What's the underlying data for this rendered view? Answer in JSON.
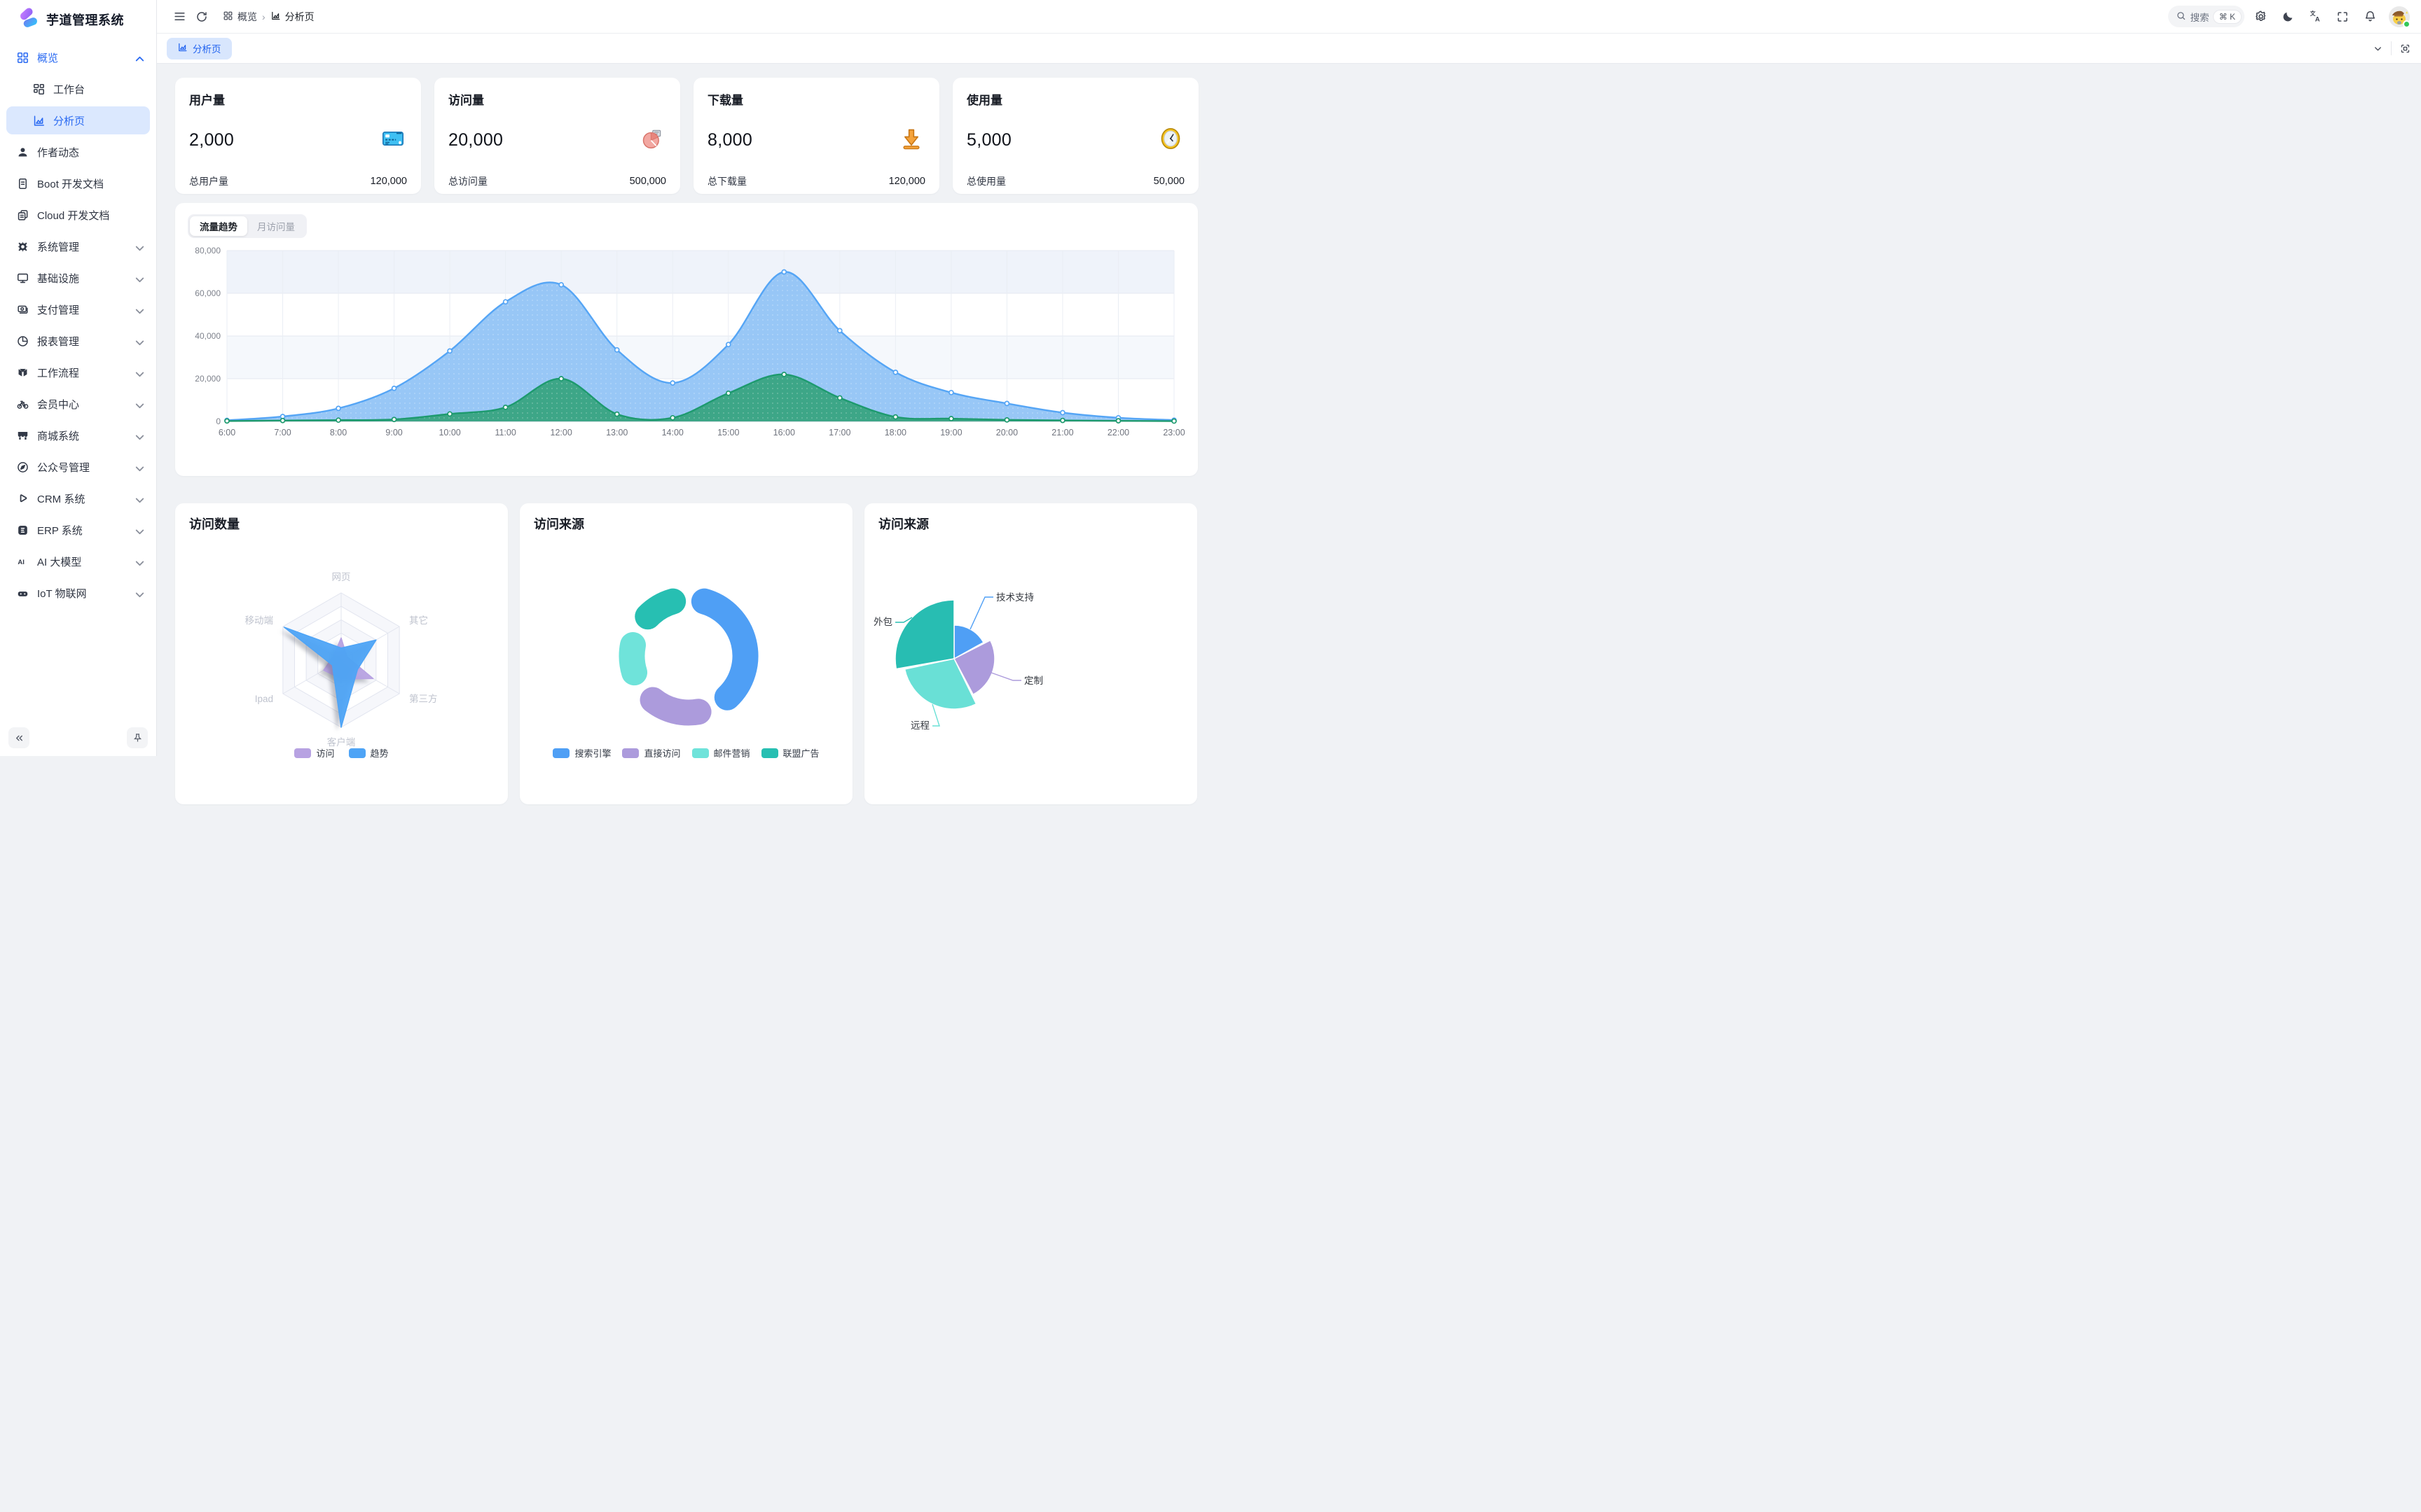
{
  "app": {
    "title": "芋道管理系统"
  },
  "topbar": {
    "search": {
      "placeholder": "搜索",
      "shortcut": "⌘ K"
    },
    "breadcrumb": [
      {
        "label": "概览",
        "icon": "grid-icon"
      },
      {
        "label": "分析页",
        "icon": "chart-icon"
      }
    ]
  },
  "tabbar": {
    "active_tab": "分析页"
  },
  "sidebar": {
    "items": [
      {
        "label": "概览",
        "icon": "grid",
        "chevron": "up",
        "group_active": true
      },
      {
        "label": "工作台",
        "icon": "layout",
        "indent": true
      },
      {
        "label": "分析页",
        "icon": "chart",
        "indent": true,
        "selected": true
      },
      {
        "label": "作者动态",
        "icon": "person"
      },
      {
        "label": "Boot 开发文档",
        "icon": "doc"
      },
      {
        "label": "Cloud 开发文档",
        "icon": "docs"
      },
      {
        "label": "系统管理",
        "icon": "gear",
        "chevron": "down"
      },
      {
        "label": "基础设施",
        "icon": "monitor",
        "chevron": "down"
      },
      {
        "label": "支付管理",
        "icon": "pay",
        "chevron": "down"
      },
      {
        "label": "报表管理",
        "icon": "pie",
        "chevron": "down"
      },
      {
        "label": "工作流程",
        "icon": "flow",
        "chevron": "down"
      },
      {
        "label": "会员中心",
        "icon": "bike",
        "chevron": "down"
      },
      {
        "label": "商城系统",
        "icon": "shop",
        "chevron": "down"
      },
      {
        "label": "公众号管理",
        "icon": "compass",
        "chevron": "down"
      },
      {
        "label": "CRM 系统",
        "icon": "play",
        "chevron": "down"
      },
      {
        "label": "ERP 系统",
        "icon": "erp",
        "chevron": "down"
      },
      {
        "label": "AI 大模型",
        "icon": "ai",
        "chevron": "down"
      },
      {
        "label": "IoT 物联网",
        "icon": "iot",
        "chevron": "down"
      }
    ]
  },
  "stats": {
    "cards": [
      {
        "title": "用户量",
        "value": "2,000",
        "icon": "bankcard",
        "footer_label": "总用户量",
        "footer_value": "120,000"
      },
      {
        "title": "访问量",
        "value": "20,000",
        "icon": "piechart",
        "footer_label": "总访问量",
        "footer_value": "500,000"
      },
      {
        "title": "下载量",
        "value": "8,000",
        "icon": "download",
        "footer_label": "总下载量",
        "footer_value": "120,000"
      },
      {
        "title": "使用量",
        "value": "5,000",
        "icon": "clock",
        "footer_label": "总使用量",
        "footer_value": "50,000"
      }
    ]
  },
  "traffic": {
    "tabs": [
      "流量趋势",
      "月访问量"
    ],
    "active_tab": "流量趋势"
  },
  "chart_data": [
    {
      "id": "traffic-trend",
      "type": "area",
      "title": "流量趋势",
      "x": [
        "6:00",
        "7:00",
        "8:00",
        "9:00",
        "10:00",
        "11:00",
        "12:00",
        "13:00",
        "14:00",
        "15:00",
        "16:00",
        "17:00",
        "18:00",
        "19:00",
        "20:00",
        "21:00",
        "22:00",
        "23:00"
      ],
      "ylim": [
        0,
        80000
      ],
      "y_ticks": [
        "0",
        "20,000",
        "40,000",
        "60,000",
        "80,000"
      ],
      "grid": true,
      "legend_position": "none",
      "series": [
        {
          "name": "series-blue",
          "color": "#55A5F5",
          "fill": "#8FC2F5",
          "values": [
            500,
            2300,
            6100,
            15500,
            33000,
            56000,
            64000,
            33500,
            18000,
            36000,
            70000,
            42500,
            23000,
            13500,
            8400,
            4100,
            1700,
            600
          ]
        },
        {
          "name": "series-green",
          "color": "#1D9A6E",
          "fill": "#35A37D",
          "values": [
            200,
            400,
            600,
            900,
            3500,
            6600,
            20000,
            3400,
            1700,
            13200,
            22000,
            11000,
            2100,
            1300,
            700,
            450,
            280,
            150
          ]
        }
      ]
    },
    {
      "id": "visit-count-radar",
      "type": "radar",
      "title": "访问数量",
      "indicators": [
        "网页",
        "其它",
        "第三方",
        "客户端",
        "Ipad",
        "移动端"
      ],
      "max": 100,
      "legend_position": "bottom",
      "series": [
        {
          "name": "访问",
          "color": "#B7A2E2",
          "values": [
            33,
            10,
            55,
            28,
            30,
            13
          ]
        },
        {
          "name": "趋势",
          "color": "#4EA4F6",
          "values": [
            18,
            60,
            28,
            100,
            15,
            98
          ]
        }
      ],
      "legend": [
        "访问",
        "趋势"
      ]
    },
    {
      "id": "visit-source-donut",
      "type": "pie",
      "title": "访问来源",
      "legend_position": "bottom",
      "slices": [
        {
          "name": "搜索引擎",
          "color": "#4F9FF5",
          "share_pct": 41,
          "start_deg": 3,
          "end_deg": 150
        },
        {
          "name": "直接访问",
          "color": "#AC9BDC",
          "share_pct": 21,
          "start_deg": 157,
          "end_deg": 232
        },
        {
          "name": "邮件营销",
          "color": "#6FE3DA",
          "share_pct": 15,
          "start_deg": 240,
          "end_deg": 294
        },
        {
          "name": "联盟广告",
          "color": "#27BFB2",
          "share_pct": 16,
          "start_deg": 301,
          "end_deg": 357
        }
      ],
      "legend": [
        "搜索引擎",
        "直接访问",
        "邮件营销",
        "联盟广告"
      ]
    },
    {
      "id": "visit-source-rose",
      "type": "pie",
      "title": "访问来源",
      "legend_position": "none",
      "slices": [
        {
          "name": "技术支持",
          "color": "#4F9FF5",
          "share_pct": 17,
          "start_deg": 0,
          "end_deg": 61,
          "radius": 48
        },
        {
          "name": "定制",
          "color": "#AC9BDC",
          "share_pct": 25,
          "start_deg": 63,
          "end_deg": 152,
          "radius": 58
        },
        {
          "name": "远程",
          "color": "#69E0D6",
          "share_pct": 29,
          "start_deg": 154,
          "end_deg": 258,
          "radius": 72
        },
        {
          "name": "外包",
          "color": "#28BDB2",
          "share_pct": 29,
          "start_deg": 260,
          "end_deg": 360,
          "radius": 84
        }
      ]
    }
  ],
  "colors": {
    "primary": "#2A6AF2",
    "selected_bg": "#DBE8FE",
    "page_bg": "#F0F2F5",
    "status_online": "#34C759"
  }
}
